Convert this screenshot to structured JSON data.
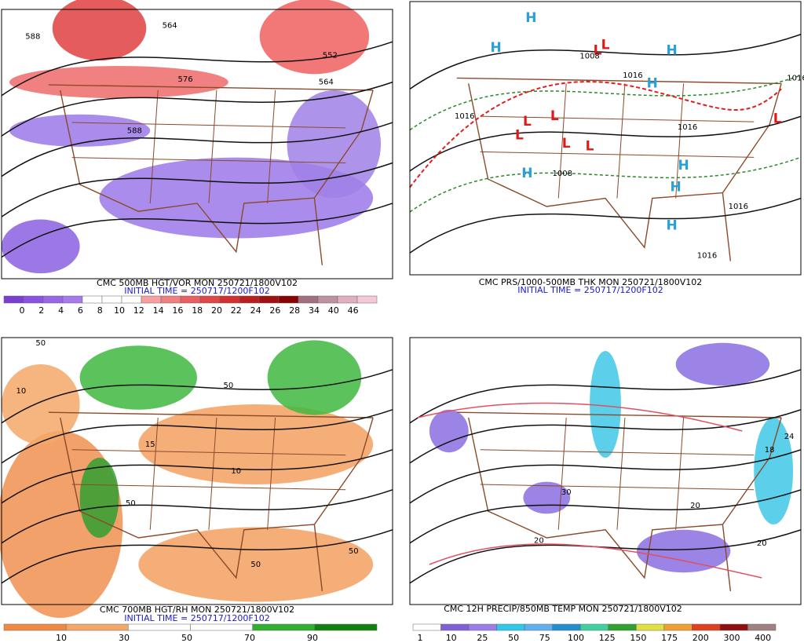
{
  "panels": [
    {
      "captions": [
        "CMC 500MB HGT/VOR MON 250721/1800V102",
        "INITIAL TIME = 250717/1200F102"
      ],
      "colorbar": {
        "labels": [
          0,
          2,
          4,
          6,
          8,
          10,
          12,
          14,
          16,
          18,
          20,
          22,
          24,
          26,
          28,
          34,
          40,
          46
        ],
        "colors": [
          "#7b3fd0",
          "#8a52e0",
          "#9966e6",
          "#a67ae8",
          "#ffffff",
          "#ffffff",
          "#ffffff",
          "#f8a0a0",
          "#f08080",
          "#e86060",
          "#e04848",
          "#d03030",
          "#b82020",
          "#a01010",
          "#880000",
          "#a07080",
          "#c090a0",
          "#e0b0c0",
          "#f4c8d8"
        ]
      },
      "map_labels": [
        "588",
        "564",
        "576",
        "552",
        "564",
        "588"
      ]
    },
    {
      "captions": [
        "CMC PRS/1000-500MB THK MON 250721/1800V102",
        "INITIAL TIME = 250717/1200F102"
      ],
      "map_labels": [
        "H",
        "H",
        "L",
        "H",
        "H",
        "L",
        "L",
        "L",
        "L",
        "L",
        "L",
        "H",
        "H",
        "H",
        "H",
        "L",
        "1016",
        "1008",
        "1016",
        "1016",
        "1008",
        "1016",
        "1016",
        "1016"
      ]
    },
    {
      "captions": [
        "CMC 700MB HGT/RH MON 250721/1800V102",
        "INITIAL TIME = 250717/1200F102"
      ],
      "colorbar": {
        "labels": [
          10,
          30,
          50,
          70,
          90
        ],
        "colors": [
          "#f08a40",
          "#f4a868",
          "#ffffff",
          "#ffffff",
          "#30b030",
          "#108010"
        ]
      },
      "map_labels": [
        "50",
        "10",
        "50",
        "15",
        "50",
        "10",
        "50",
        "50"
      ]
    },
    {
      "captions": [
        "CMC 12H PRECIP/850MB TEMP MON 250721/1800V102"
      ],
      "colorbar": {
        "labels": [
          1,
          10,
          25,
          50,
          75,
          100,
          125,
          150,
          175,
          200,
          300,
          400
        ],
        "colors": [
          "#ffffff",
          "#8060d8",
          "#9b7fe8",
          "#30c8e8",
          "#60b0f0",
          "#2090d0",
          "#40d0a0",
          "#30a030",
          "#e0e040",
          "#f0a030",
          "#e04020",
          "#901010",
          "#a08080"
        ]
      },
      "map_labels": [
        "20",
        "20",
        "30",
        "20",
        "24",
        "18"
      ]
    }
  ]
}
